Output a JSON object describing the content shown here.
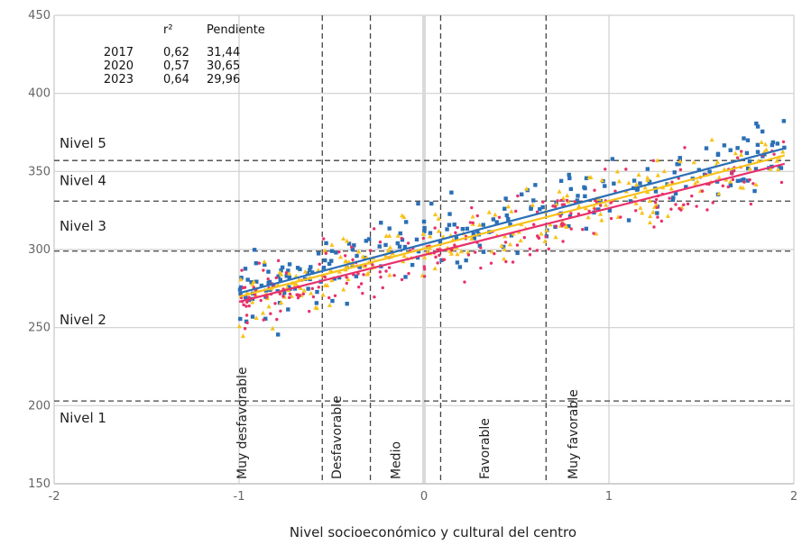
{
  "chart_data": {
    "type": "scatter",
    "xlabel": "Nivel socioeconómico y cultural del centro",
    "ylabel": "",
    "xlim": [
      -2,
      2
    ],
    "ylim": [
      150,
      450
    ],
    "x_ticks": [
      -2,
      -1,
      0,
      1,
      2
    ],
    "x_tick_labels": [
      "-2",
      "-1",
      "0",
      "1",
      "2"
    ],
    "y_ticks": [
      150,
      200,
      250,
      300,
      350,
      400,
      450
    ],
    "y_tick_labels": [
      "150",
      "200",
      "250",
      "300",
      "350",
      "400",
      "450"
    ],
    "grid": true,
    "levels": [
      {
        "label": "Nivel 1",
        "y_label": 192
      },
      {
        "label": "Nivel 2",
        "y_label": 255
      },
      {
        "label": "Nivel 3",
        "y_label": 315
      },
      {
        "label": "Nivel 4",
        "y_label": 344
      },
      {
        "label": "Nivel 5",
        "y_label": 368
      }
    ],
    "level_cutoffs": [
      203,
      299,
      331,
      357
    ],
    "nse_categories": [
      {
        "label": "Muy desfavorable",
        "x_label": -0.96
      },
      {
        "label": "Desfavorable",
        "x_label": -0.45
      },
      {
        "label": "Medio",
        "x_label": -0.13
      },
      {
        "label": "Favorable",
        "x_label": 0.35
      },
      {
        "label": "Muy favorable",
        "x_label": 0.83
      }
    ],
    "nse_cutoffs": [
      -0.55,
      -0.29,
      0.09,
      0.66
    ],
    "stats_table": {
      "headers": [
        "",
        "r²",
        "Pendiente"
      ],
      "rows": [
        [
          "2017",
          "0,62",
          "31,44"
        ],
        [
          "2020",
          "0,57",
          "30,65"
        ],
        [
          "2023",
          "0,64",
          "29,96"
        ]
      ]
    },
    "series": [
      {
        "year": "2017",
        "color": "#2b6fb6",
        "marker": "square",
        "slope": 31.44,
        "intercept": 303.5,
        "x_range": [
          -1.0,
          1.95
        ]
      },
      {
        "year": "2020",
        "color": "#f7c21a",
        "marker": "triangle",
        "slope": 30.65,
        "intercept": 300.5,
        "x_range": [
          -1.0,
          1.95
        ]
      },
      {
        "year": "2023",
        "color": "#e8316b",
        "marker": "circle",
        "slope": 29.96,
        "intercept": 296.5,
        "x_range": [
          -1.0,
          1.95
        ]
      }
    ]
  }
}
